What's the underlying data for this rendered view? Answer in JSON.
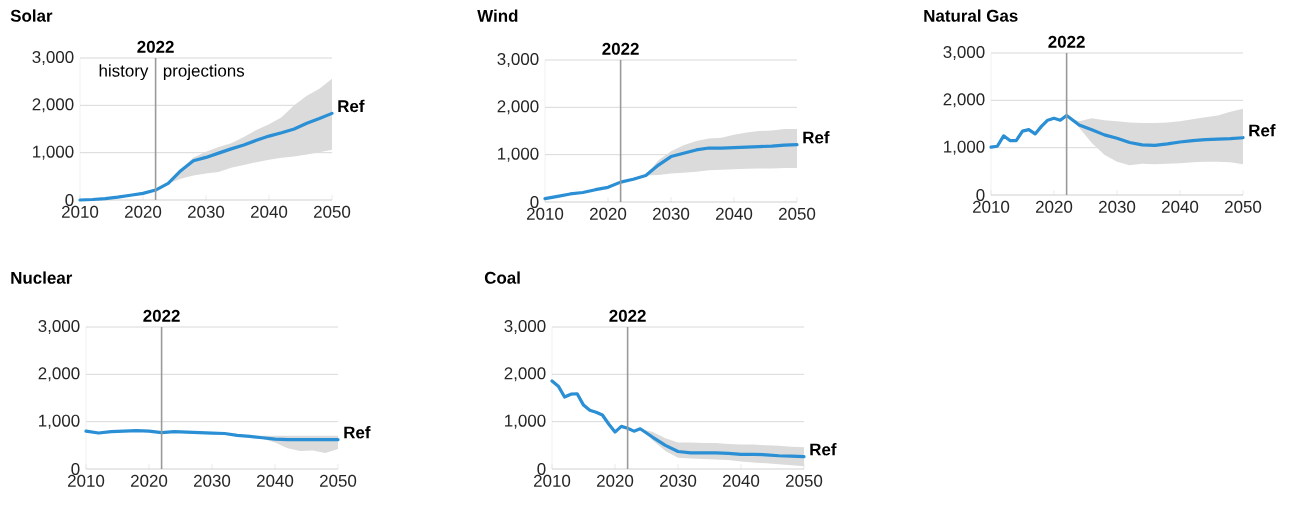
{
  "chart_data": [
    {
      "type": "line",
      "title": "Solar",
      "xlim": [
        2010,
        2050
      ],
      "ylim": [
        0,
        3000
      ],
      "grid": "y",
      "xticks": [
        2010,
        2020,
        2030,
        2040,
        2050
      ],
      "yticks": [
        0,
        {
          "value": 1000,
          "label": "1,000"
        },
        {
          "value": 2000,
          "label": "2,000"
        },
        {
          "value": 3000,
          "label": "3,000"
        }
      ],
      "ref_lines": [
        {
          "axis": "x",
          "value": 2022,
          "label": "2022",
          "color": "#9a9a9a"
        }
      ],
      "annotations": [
        "history",
        "projections"
      ],
      "series": [
        {
          "name": "Ref",
          "color": "#2a8fd4",
          "x": [
            2010,
            2012,
            2014,
            2016,
            2018,
            2020,
            2022,
            2024,
            2026,
            2028,
            2030,
            2032,
            2034,
            2036,
            2038,
            2040,
            2042,
            2044,
            2046,
            2048,
            2050
          ],
          "values": [
            0,
            10,
            30,
            60,
            100,
            140,
            210,
            350,
            620,
            830,
            900,
            990,
            1080,
            1160,
            1260,
            1350,
            1420,
            1500,
            1620,
            1720,
            1830
          ],
          "lower": [
            0,
            10,
            30,
            60,
            100,
            140,
            210,
            350,
            450,
            520,
            560,
            590,
            680,
            740,
            800,
            850,
            890,
            920,
            960,
            1010,
            1060
          ],
          "upper": [
            0,
            10,
            30,
            60,
            100,
            140,
            210,
            350,
            650,
            900,
            1020,
            1120,
            1200,
            1330,
            1480,
            1600,
            1750,
            2000,
            2200,
            2350,
            2560
          ]
        }
      ]
    },
    {
      "type": "line",
      "title": "Wind",
      "xlim": [
        2010,
        2050
      ],
      "ylim": [
        0,
        3000
      ],
      "grid": "y",
      "xticks": [
        2010,
        2020,
        2030,
        2040,
        2050
      ],
      "yticks": [
        0,
        {
          "value": 1000,
          "label": "1,000"
        },
        {
          "value": 2000,
          "label": "2,000"
        },
        {
          "value": 3000,
          "label": "3,000"
        }
      ],
      "ref_lines": [
        {
          "axis": "x",
          "value": 2022,
          "label": "2022",
          "color": "#9a9a9a"
        }
      ],
      "series": [
        {
          "name": "Ref",
          "color": "#2a8fd4",
          "x": [
            2010,
            2012,
            2014,
            2016,
            2018,
            2020,
            2022,
            2024,
            2026,
            2028,
            2030,
            2032,
            2034,
            2036,
            2038,
            2040,
            2042,
            2044,
            2046,
            2048,
            2050
          ],
          "values": [
            70,
            120,
            170,
            200,
            260,
            310,
            420,
            480,
            560,
            780,
            960,
            1030,
            1100,
            1140,
            1140,
            1150,
            1160,
            1170,
            1180,
            1200,
            1210
          ],
          "lower": [
            70,
            120,
            170,
            200,
            260,
            310,
            420,
            480,
            560,
            570,
            600,
            620,
            640,
            670,
            680,
            690,
            700,
            710,
            710,
            720,
            720
          ],
          "upper": [
            70,
            120,
            170,
            200,
            260,
            310,
            420,
            480,
            560,
            880,
            1070,
            1200,
            1290,
            1340,
            1360,
            1420,
            1470,
            1500,
            1510,
            1540,
            1540
          ]
        }
      ]
    },
    {
      "type": "line",
      "title": "Natural Gas",
      "xlim": [
        2010,
        2050
      ],
      "ylim": [
        0,
        3000
      ],
      "grid": "y",
      "xticks": [
        2010,
        2020,
        2030,
        2040,
        2050
      ],
      "yticks": [
        0,
        {
          "value": 1000,
          "label": "1,000"
        },
        {
          "value": 2000,
          "label": "2,000"
        },
        {
          "value": 3000,
          "label": "3,000"
        }
      ],
      "ref_lines": [
        {
          "axis": "x",
          "value": 2022,
          "label": "2022",
          "color": "#9a9a9a"
        }
      ],
      "series": [
        {
          "name": "Ref",
          "color": "#2a8fd4",
          "x": [
            2010,
            2011,
            2012,
            2013,
            2014,
            2015,
            2016,
            2017,
            2018,
            2019,
            2020,
            2021,
            2022,
            2023,
            2024,
            2026,
            2028,
            2030,
            2032,
            2034,
            2036,
            2038,
            2040,
            2042,
            2044,
            2046,
            2048,
            2050
          ],
          "values": [
            1010,
            1030,
            1250,
            1150,
            1150,
            1350,
            1380,
            1290,
            1450,
            1580,
            1620,
            1580,
            1680,
            1580,
            1480,
            1380,
            1270,
            1200,
            1110,
            1060,
            1050,
            1080,
            1120,
            1150,
            1170,
            1180,
            1190,
            1210
          ],
          "lower": [
            1010,
            1030,
            1250,
            1150,
            1150,
            1350,
            1380,
            1290,
            1450,
            1580,
            1620,
            1580,
            1680,
            1560,
            1420,
            1100,
            850,
            700,
            630,
            660,
            650,
            660,
            670,
            690,
            700,
            700,
            690,
            650
          ],
          "upper": [
            1010,
            1030,
            1250,
            1150,
            1150,
            1350,
            1380,
            1290,
            1450,
            1580,
            1620,
            1580,
            1680,
            1600,
            1560,
            1620,
            1580,
            1560,
            1530,
            1520,
            1520,
            1530,
            1560,
            1600,
            1640,
            1680,
            1760,
            1820
          ]
        }
      ]
    },
    {
      "type": "line",
      "title": "Nuclear",
      "xlim": [
        2010,
        2050
      ],
      "ylim": [
        0,
        3000
      ],
      "grid": "y",
      "xticks": [
        2010,
        2020,
        2030,
        2040,
        2050
      ],
      "yticks": [
        0,
        {
          "value": 1000,
          "label": "1,000"
        },
        {
          "value": 2000,
          "label": "2,000"
        },
        {
          "value": 3000,
          "label": "3,000"
        }
      ],
      "ref_lines": [
        {
          "axis": "x",
          "value": 2022,
          "label": "2022",
          "color": "#9a9a9a"
        }
      ],
      "series": [
        {
          "name": "Ref",
          "color": "#2a8fd4",
          "x": [
            2010,
            2012,
            2014,
            2016,
            2018,
            2020,
            2022,
            2024,
            2026,
            2028,
            2030,
            2032,
            2034,
            2036,
            2038,
            2040,
            2042,
            2044,
            2046,
            2048,
            2050
          ],
          "values": [
            800,
            760,
            790,
            800,
            810,
            800,
            770,
            790,
            780,
            770,
            760,
            750,
            710,
            690,
            660,
            630,
            620,
            620,
            620,
            620,
            620
          ],
          "lower": [
            800,
            760,
            790,
            800,
            810,
            800,
            770,
            790,
            780,
            770,
            760,
            750,
            700,
            670,
            640,
            560,
            440,
            380,
            390,
            340,
            420
          ],
          "upper": [
            800,
            760,
            790,
            800,
            810,
            800,
            770,
            790,
            780,
            770,
            760,
            750,
            720,
            700,
            700,
            700,
            700,
            700,
            700,
            700,
            700
          ]
        }
      ]
    },
    {
      "type": "line",
      "title": "Coal",
      "xlim": [
        2010,
        2050
      ],
      "ylim": [
        0,
        3000
      ],
      "grid": "y",
      "xticks": [
        2010,
        2020,
        2030,
        2040,
        2050
      ],
      "yticks": [
        0,
        {
          "value": 1000,
          "label": "1,000"
        },
        {
          "value": 2000,
          "label": "2,000"
        },
        {
          "value": 3000,
          "label": "3,000"
        }
      ],
      "ref_lines": [
        {
          "axis": "x",
          "value": 2022,
          "label": "2022",
          "color": "#9a9a9a"
        }
      ],
      "series": [
        {
          "name": "Ref",
          "color": "#2a8fd4",
          "x": [
            2010,
            2011,
            2012,
            2013,
            2014,
            2015,
            2016,
            2017,
            2018,
            2019,
            2020,
            2021,
            2022,
            2023,
            2024,
            2026,
            2028,
            2030,
            2032,
            2034,
            2036,
            2038,
            2040,
            2042,
            2044,
            2046,
            2048,
            2050
          ],
          "values": [
            1860,
            1750,
            1520,
            1580,
            1590,
            1350,
            1240,
            1200,
            1140,
            950,
            780,
            900,
            860,
            800,
            850,
            670,
            500,
            370,
            340,
            340,
            340,
            330,
            310,
            310,
            300,
            280,
            270,
            260
          ],
          "lower": [
            1860,
            1750,
            1520,
            1580,
            1590,
            1350,
            1240,
            1200,
            1140,
            950,
            780,
            900,
            860,
            800,
            850,
            600,
            380,
            240,
            220,
            210,
            200,
            190,
            160,
            140,
            120,
            100,
            80,
            60
          ],
          "upper": [
            1860,
            1750,
            1520,
            1580,
            1590,
            1350,
            1240,
            1200,
            1140,
            950,
            780,
            900,
            860,
            800,
            850,
            780,
            650,
            560,
            560,
            550,
            550,
            530,
            520,
            520,
            500,
            490,
            470,
            460
          ]
        }
      ]
    }
  ]
}
